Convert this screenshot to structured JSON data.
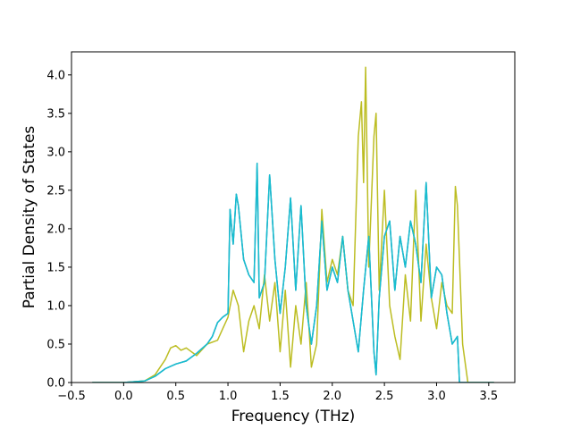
{
  "chart_data": {
    "type": "line",
    "title": "",
    "xlabel": "Frequency (THz)",
    "ylabel": "Partial Density of States",
    "xlim": [
      -0.5,
      3.75
    ],
    "ylim": [
      0,
      4.3
    ],
    "xticks": [
      -0.5,
      0.0,
      0.5,
      1.0,
      1.5,
      2.0,
      2.5,
      3.0,
      3.5
    ],
    "xtick_labels": [
      "−0.5",
      "0.0",
      "0.5",
      "1.0",
      "1.5",
      "2.0",
      "2.5",
      "3.0",
      "3.5"
    ],
    "yticks": [
      0.0,
      0.5,
      1.0,
      1.5,
      2.0,
      2.5,
      3.0,
      3.5,
      4.0
    ],
    "ytick_labels": [
      "0.0",
      "0.5",
      "1.0",
      "1.5",
      "2.0",
      "2.5",
      "3.0",
      "3.5",
      "4.0"
    ],
    "grid": false,
    "legend": "none",
    "series": [
      {
        "color": "#1f77b4",
        "x": [
          -0.3,
          0.0,
          0.2,
          0.3,
          0.4,
          0.5,
          0.6,
          0.7,
          0.8,
          0.85,
          0.9,
          0.95,
          1.0,
          1.02,
          1.05,
          1.08,
          1.1,
          1.15,
          1.2,
          1.25,
          1.28,
          1.3,
          1.35,
          1.4,
          1.45,
          1.5,
          1.55,
          1.6,
          1.65,
          1.7,
          1.75,
          1.8,
          1.85,
          1.9,
          1.95,
          2.0,
          2.05,
          2.1,
          2.15,
          2.2,
          2.25,
          2.3,
          2.35,
          2.4,
          2.42,
          2.45,
          2.5,
          2.55,
          2.6,
          2.65,
          2.7,
          2.75,
          2.8,
          2.85,
          2.9,
          2.95,
          3.0,
          3.05,
          3.1,
          3.15,
          3.2,
          3.22,
          3.3,
          3.55
        ],
        "y": [
          0.0,
          0.0,
          0.02,
          0.08,
          0.18,
          0.24,
          0.28,
          0.38,
          0.5,
          0.6,
          0.78,
          0.85,
          0.9,
          2.25,
          1.8,
          2.45,
          2.3,
          1.6,
          1.4,
          1.3,
          2.85,
          1.1,
          1.3,
          2.7,
          1.6,
          0.9,
          1.5,
          2.4,
          1.2,
          2.3,
          1.0,
          0.5,
          1.0,
          2.1,
          1.2,
          1.5,
          1.3,
          1.9,
          1.2,
          0.8,
          0.4,
          1.2,
          1.9,
          0.4,
          0.1,
          1.1,
          1.9,
          2.1,
          1.2,
          1.9,
          1.5,
          2.1,
          1.8,
          1.3,
          2.6,
          1.1,
          1.5,
          1.4,
          0.9,
          0.5,
          0.6,
          0.0,
          0.0,
          0.0
        ]
      },
      {
        "color": "#bcbd22",
        "x": [
          -0.3,
          0.0,
          0.2,
          0.3,
          0.4,
          0.45,
          0.5,
          0.55,
          0.6,
          0.7,
          0.8,
          0.9,
          0.95,
          1.0,
          1.05,
          1.1,
          1.15,
          1.2,
          1.25,
          1.3,
          1.35,
          1.4,
          1.45,
          1.5,
          1.55,
          1.6,
          1.65,
          1.7,
          1.75,
          1.8,
          1.85,
          1.9,
          1.95,
          2.0,
          2.05,
          2.1,
          2.15,
          2.2,
          2.25,
          2.28,
          2.3,
          2.32,
          2.35,
          2.4,
          2.42,
          2.45,
          2.5,
          2.55,
          2.6,
          2.65,
          2.7,
          2.75,
          2.8,
          2.85,
          2.9,
          2.95,
          3.0,
          3.05,
          3.1,
          3.15,
          3.18,
          3.2,
          3.22,
          3.25,
          3.3,
          3.55
        ],
        "y": [
          0.0,
          0.0,
          0.02,
          0.1,
          0.3,
          0.45,
          0.48,
          0.42,
          0.45,
          0.35,
          0.5,
          0.55,
          0.7,
          0.85,
          1.2,
          1.0,
          0.4,
          0.8,
          1.0,
          0.7,
          1.4,
          0.8,
          1.3,
          0.4,
          1.2,
          0.2,
          1.0,
          0.5,
          1.3,
          0.2,
          0.5,
          2.25,
          1.3,
          1.6,
          1.4,
          1.9,
          1.2,
          1.0,
          3.2,
          3.65,
          2.6,
          4.1,
          1.5,
          3.2,
          3.5,
          1.2,
          2.5,
          1.0,
          0.6,
          0.3,
          1.4,
          0.8,
          2.5,
          0.8,
          1.8,
          1.1,
          0.7,
          1.3,
          1.0,
          0.9,
          2.55,
          2.3,
          1.6,
          0.5,
          0.0,
          0.0
        ]
      },
      {
        "color": "#17becf",
        "x": [
          -0.3,
          0.0,
          0.2,
          0.3,
          0.4,
          0.5,
          0.6,
          0.7,
          0.8,
          0.85,
          0.9,
          0.95,
          1.0,
          1.02,
          1.05,
          1.08,
          1.1,
          1.15,
          1.2,
          1.25,
          1.28,
          1.3,
          1.35,
          1.4,
          1.45,
          1.5,
          1.55,
          1.6,
          1.65,
          1.7,
          1.75,
          1.8,
          1.85,
          1.9,
          1.95,
          2.0,
          2.05,
          2.1,
          2.15,
          2.2,
          2.25,
          2.3,
          2.35,
          2.4,
          2.42,
          2.45,
          2.5,
          2.55,
          2.6,
          2.65,
          2.7,
          2.75,
          2.8,
          2.85,
          2.9,
          2.95,
          3.0,
          3.05,
          3.1,
          3.15,
          3.2,
          3.22,
          3.3,
          3.55
        ],
        "y": [
          0.0,
          0.0,
          0.02,
          0.08,
          0.18,
          0.24,
          0.28,
          0.38,
          0.5,
          0.6,
          0.78,
          0.85,
          0.9,
          2.25,
          1.8,
          2.45,
          2.3,
          1.6,
          1.4,
          1.3,
          2.85,
          1.1,
          1.3,
          2.7,
          1.6,
          0.9,
          1.5,
          2.4,
          1.2,
          2.3,
          1.0,
          0.5,
          1.0,
          2.1,
          1.2,
          1.5,
          1.3,
          1.9,
          1.2,
          0.8,
          0.4,
          1.2,
          1.9,
          0.4,
          0.1,
          1.1,
          1.9,
          2.1,
          1.2,
          1.9,
          1.5,
          2.1,
          1.8,
          1.3,
          2.6,
          1.1,
          1.5,
          1.4,
          0.9,
          0.5,
          0.6,
          0.0,
          0.0,
          0.0
        ]
      }
    ]
  }
}
